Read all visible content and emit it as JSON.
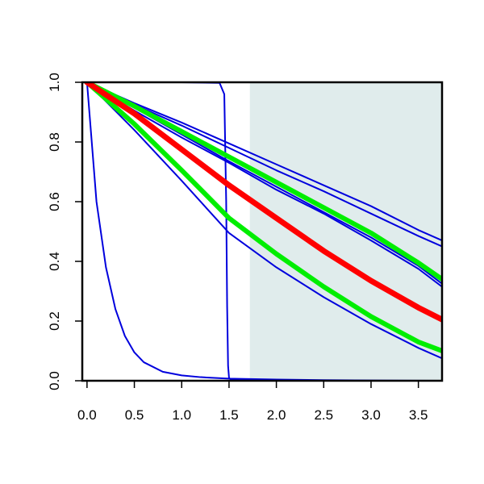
{
  "chart_data": {
    "type": "line",
    "title": "",
    "xlabel": "",
    "ylabel": "",
    "xlim": [
      -0.05,
      3.75
    ],
    "ylim": [
      0.0,
      1.0
    ],
    "grid": false,
    "shaded_region": {
      "x_start": 1.72,
      "x_end": 3.75,
      "color": "#e0ecec"
    },
    "x_ticks": [
      0.0,
      0.5,
      1.0,
      1.5,
      2.0,
      2.5,
      3.0,
      3.5
    ],
    "x_tick_labels": [
      "0.0",
      "0.5",
      "1.0",
      "1.5",
      "2.0",
      "2.5",
      "3.0",
      "3.5"
    ],
    "y_ticks": [
      0.0,
      0.2,
      0.4,
      0.6,
      0.8,
      1.0
    ],
    "y_tick_labels": [
      "0.0",
      "0.2",
      "0.4",
      "0.6",
      "0.8",
      "1.0"
    ],
    "series": [
      {
        "color": "#0000dd",
        "x": [
          0.0,
          0.1,
          0.2,
          0.3,
          0.4,
          0.5,
          0.6,
          0.8,
          1.0,
          1.2,
          1.5,
          2.0,
          2.5,
          3.0,
          3.75
        ],
        "values": [
          1.0,
          0.6,
          0.38,
          0.24,
          0.15,
          0.095,
          0.062,
          0.03,
          0.018,
          0.012,
          0.007,
          0.004,
          0.002,
          0.001,
          0.0
        ]
      },
      {
        "color": "#0000dd",
        "x": [
          0.0,
          0.5,
          1.0,
          1.4,
          1.45,
          1.47,
          1.48,
          1.49,
          1.5,
          1.52,
          1.6,
          2.0,
          3.0,
          3.75
        ],
        "values": [
          1.0,
          1.0,
          1.0,
          0.998,
          0.96,
          0.6,
          0.25,
          0.05,
          0.01,
          0.003,
          0.0015,
          0.001,
          0.0,
          0.0
        ]
      },
      {
        "color": "#0000dd",
        "x": [
          0.0,
          0.5,
          1.0,
          1.5,
          2.0,
          2.5,
          3.0,
          3.5,
          3.75
        ],
        "values": [
          1.0,
          0.84,
          0.67,
          0.495,
          0.38,
          0.28,
          0.19,
          0.11,
          0.075
        ]
      },
      {
        "color": "#0000dd",
        "x": [
          0.0,
          0.5,
          1.0,
          1.5,
          2.0,
          2.5,
          3.0,
          3.5,
          3.75
        ],
        "values": [
          1.0,
          0.905,
          0.815,
          0.73,
          0.64,
          0.56,
          0.47,
          0.375,
          0.315
        ]
      },
      {
        "color": "#0000dd",
        "x": [
          0.0,
          0.5,
          1.0,
          1.5,
          2.0,
          2.5,
          3.0,
          3.5,
          3.75
        ],
        "values": [
          1.0,
          0.915,
          0.825,
          0.735,
          0.65,
          0.565,
          0.48,
          0.385,
          0.325
        ]
      },
      {
        "color": "#0000dd",
        "x": [
          0.0,
          0.5,
          1.0,
          1.5,
          2.0,
          2.5,
          3.0,
          3.5,
          3.75
        ],
        "values": [
          1.0,
          0.925,
          0.855,
          0.78,
          0.705,
          0.635,
          0.56,
          0.485,
          0.45
        ]
      },
      {
        "color": "#0000dd",
        "x": [
          0.0,
          0.5,
          1.0,
          1.5,
          2.0,
          2.5,
          3.0,
          3.5,
          3.75
        ],
        "values": [
          1.0,
          0.93,
          0.865,
          0.795,
          0.725,
          0.655,
          0.585,
          0.505,
          0.47
        ]
      },
      {
        "color": "#00ee00",
        "x": [
          0.0,
          0.5,
          1.0,
          1.5,
          2.0,
          2.5,
          3.0,
          3.5,
          3.75
        ],
        "values": [
          1.0,
          0.92,
          0.835,
          0.75,
          0.665,
          0.58,
          0.495,
          0.395,
          0.34
        ]
      },
      {
        "color": "#00ee00",
        "x": [
          0.0,
          0.5,
          1.0,
          1.5,
          2.0,
          2.5,
          3.0,
          3.5,
          3.75
        ],
        "values": [
          1.0,
          0.86,
          0.705,
          0.545,
          0.425,
          0.315,
          0.215,
          0.13,
          0.1
        ]
      },
      {
        "color": "#ff0000",
        "x": [
          0.0,
          0.5,
          1.0,
          1.5,
          2.0,
          2.5,
          3.0,
          3.5,
          3.75
        ],
        "values": [
          1.0,
          0.895,
          0.775,
          0.655,
          0.545,
          0.435,
          0.335,
          0.245,
          0.205
        ]
      }
    ]
  }
}
